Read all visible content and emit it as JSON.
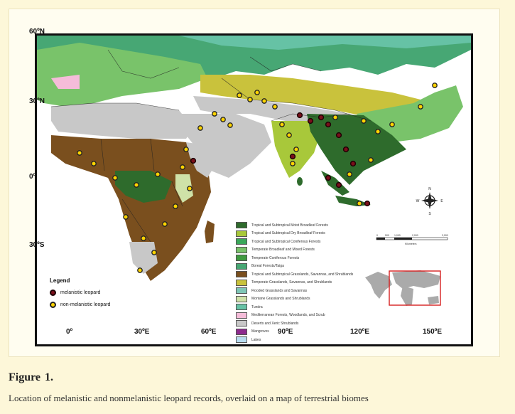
{
  "axes": {
    "lat_labels": [
      "60ºN",
      "30ºN",
      "0º",
      "30ºS"
    ],
    "lon_labels": [
      "0º",
      "30ºE",
      "60ºE",
      "90ºE",
      "120ºE",
      "150ºE"
    ]
  },
  "biome_legend": [
    {
      "label": "Tropical and Subtropical Moist Broadleaf Forests",
      "color": "#2e6b2c"
    },
    {
      "label": "Tropical and Subtropical Dry Broadleaf Forests",
      "color": "#a8c83a"
    },
    {
      "label": "Tropical and Subtropical Coniferous Forests",
      "color": "#3aa85a"
    },
    {
      "label": "Temperate Broadleaf and Mixed Forests",
      "color": "#79c36a"
    },
    {
      "label": "Temperate Coniferous Forests",
      "color": "#3f9a3f"
    },
    {
      "label": "Boreal Forests/Taiga",
      "color": "#47a774"
    },
    {
      "label": "Tropical and Subtropical Grasslands, Savannas, and Shrublands",
      "color": "#7a4f1e"
    },
    {
      "label": "Temperate Grasslands, Savannas, and Shrublands",
      "color": "#c9c23c"
    },
    {
      "label": "Flooded Grasslands and Savannas",
      "color": "#7fc6b6"
    },
    {
      "label": "Montane Grasslands and Shrublands",
      "color": "#cfe2a8"
    },
    {
      "label": "Tundra",
      "color": "#66c2a5"
    },
    {
      "label": "Mediterranean Forests, Woodlands, and Scrub",
      "color": "#f5bcd9"
    },
    {
      "label": "Deserts and Xeric Shrublands",
      "color": "#c8c8c8"
    },
    {
      "label": "Mangroves",
      "color": "#8e2a8e"
    },
    {
      "label": "Lakes",
      "color": "#b8dcef"
    }
  ],
  "points_legend": {
    "title": "Legend",
    "melanistic": "melanistic leopard",
    "non_melanistic": "non-melanistic leopard"
  },
  "compass": {
    "n": "N",
    "s": "S",
    "e": "E",
    "w": "W"
  },
  "scalebar": {
    "ticks": [
      "0",
      "500",
      "1,000",
      "2,000",
      "3,000"
    ],
    "unit": "Kilometers"
  },
  "caption": {
    "label": "Figure",
    "number": "1.",
    "text": "Location of melanistic and nonmelanistic leopard records, overlaid on a map of terrestrial biomes"
  },
  "colors": {
    "melanistic_fill": "#7a0f1a",
    "non_melanistic_fill": "#ffd400",
    "inset_extent": "#d62020"
  }
}
